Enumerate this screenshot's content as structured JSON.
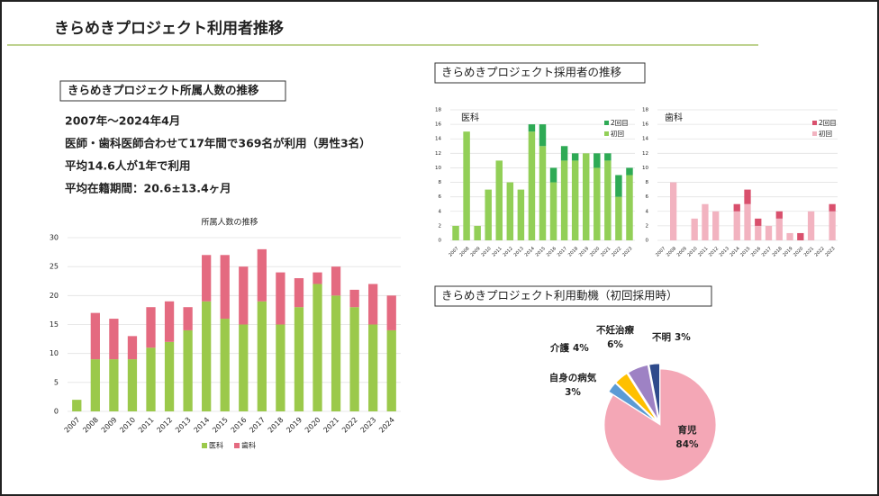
{
  "title": "きらめきプロジェクト利用者推移",
  "summary": {
    "heading": "きらめきプロジェクト所属人数の推移",
    "lines": [
      "2007年～2024年4月",
      "医師・歯科医師合わせて17年間で369名が利用（男性3名）",
      "平均14.6人が1年で利用",
      "平均在籍期間：20.6±13.4ヶ月"
    ]
  },
  "recruit_heading": "きらめきプロジェクト採用者の推移",
  "motive_heading": "きらめきプロジェクト利用動機（初回採用時）",
  "chart_data": [
    {
      "type": "bar",
      "stacked": true,
      "title": "所属人数の推移",
      "legend": "bottom",
      "grid": true,
      "categories": [
        "2007",
        "2008",
        "2009",
        "2010",
        "2011",
        "2012",
        "2013",
        "2014",
        "2015",
        "2016",
        "2017",
        "2018",
        "2019",
        "2020",
        "2021",
        "2022",
        "2023",
        "2024"
      ],
      "series": [
        {
          "name": "医科",
          "color": "#9bc94b",
          "values": [
            2,
            9,
            9,
            9,
            11,
            12,
            14,
            19,
            16,
            15,
            19,
            15,
            18,
            22,
            20,
            18,
            15,
            14
          ]
        },
        {
          "name": "歯科",
          "color": "#e46a80",
          "values": [
            0,
            8,
            7,
            4,
            7,
            7,
            4,
            8,
            11,
            10,
            9,
            9,
            5,
            2,
            5,
            3,
            7,
            6
          ]
        }
      ],
      "ylim": [
        0,
        30
      ],
      "yticks": [
        0,
        5,
        10,
        15,
        20,
        25,
        30
      ]
    },
    {
      "type": "bar",
      "stacked": true,
      "title": "医科",
      "legend": "right",
      "grid": true,
      "categories": [
        "2007",
        "2008",
        "2009",
        "2010",
        "2011",
        "2012",
        "2013",
        "2014",
        "2015",
        "2016",
        "2017",
        "2018",
        "2019",
        "2020",
        "2021",
        "2022",
        "2023"
      ],
      "series": [
        {
          "name": "初回",
          "color": "#92cf57",
          "values": [
            2,
            15,
            2,
            7,
            11,
            8,
            7,
            15,
            13,
            8,
            11,
            11,
            12,
            10,
            11,
            6,
            9
          ]
        },
        {
          "name": "2回目",
          "color": "#2eaa55",
          "values": [
            0,
            0,
            0,
            0,
            0,
            0,
            0,
            1,
            3,
            2,
            2,
            1,
            0,
            2,
            1,
            3,
            1
          ]
        }
      ],
      "ylim": [
        0,
        18
      ],
      "yticks": [
        0,
        2,
        4,
        6,
        8,
        10,
        12,
        14,
        16,
        18
      ]
    },
    {
      "type": "bar",
      "stacked": true,
      "title": "歯科",
      "legend": "right",
      "grid": true,
      "categories": [
        "2007",
        "2008",
        "2009",
        "2010",
        "2011",
        "2012",
        "2013",
        "2014",
        "2015",
        "2016",
        "2017",
        "2018",
        "2019",
        "2020",
        "2021",
        "2022",
        "2023"
      ],
      "series": [
        {
          "name": "初回",
          "color": "#f2b3c0",
          "values": [
            0,
            8,
            0,
            3,
            5,
            4,
            0,
            4,
            5,
            2,
            2,
            3,
            1,
            0,
            4,
            0,
            4
          ]
        },
        {
          "name": "2回目",
          "color": "#d9506d",
          "values": [
            0,
            0,
            0,
            0,
            0,
            0,
            0,
            1,
            2,
            1,
            0,
            1,
            0,
            1,
            0,
            0,
            1
          ]
        }
      ],
      "ylim": [
        0,
        18
      ],
      "yticks": [
        0,
        2,
        4,
        6,
        8,
        10,
        12,
        14,
        16,
        18
      ]
    },
    {
      "type": "pie",
      "categories": [
        "育児",
        "自身の病気",
        "介護",
        "不妊治療",
        "不明"
      ],
      "values": [
        84,
        3,
        4,
        6,
        3
      ],
      "value_labels": [
        "84%",
        "3%",
        "4%",
        "6%",
        "3%"
      ],
      "colors": [
        "#f4a7b6",
        "#5b9bd5",
        "#ffc000",
        "#9e82c4",
        "#2f4b8c"
      ]
    }
  ]
}
